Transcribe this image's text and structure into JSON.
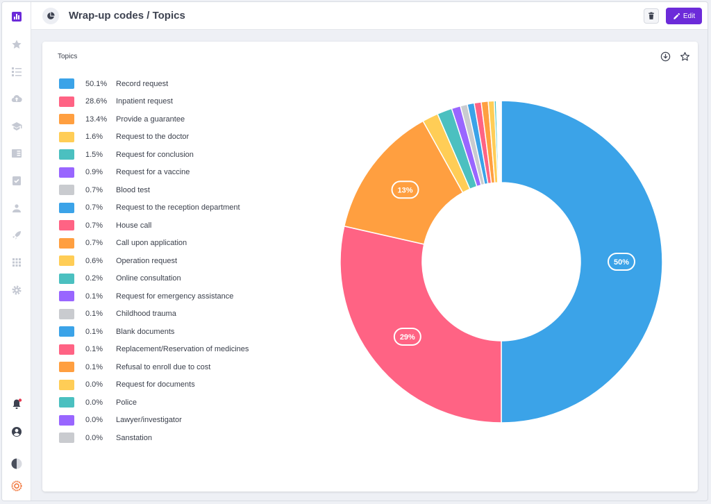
{
  "header": {
    "title": "Wrap-up codes / Topics",
    "edit_label": "Edit"
  },
  "card": {
    "title": "Topics"
  },
  "colors": {
    "accent": "#6c2bd9",
    "palette": [
      "#3ba3e8",
      "#ff6384",
      "#ff9f40",
      "#ffcd56",
      "#4bc0c0",
      "#9966ff",
      "#c9cbcf"
    ]
  },
  "sidebar_icons": [
    "bar-chart-icon",
    "star-icon",
    "list-icon",
    "cloud-upload-icon",
    "school-icon",
    "book-icon",
    "clipboard-check-icon",
    "users-icon",
    "rocket-icon",
    "apps-grid-icon",
    "gear-icon",
    "bell-icon",
    "account-icon",
    "theme-toggle-icon",
    "logo-icon"
  ],
  "chart_data": {
    "type": "pie",
    "variant": "doughnut",
    "title": "Topics",
    "legend": "left",
    "categories": [
      "Record request",
      "Inpatient request",
      "Provide a guarantee",
      "Request to the doctor",
      "Request for conclusion",
      "Request for a vaccine",
      "Blood test",
      "Request to the reception department",
      "House call",
      "Call upon application",
      "Operation request",
      "Online consultation",
      "Request for emergency assistance",
      "Childhood trauma",
      "Blank documents",
      "Replacement/Reservation of medicines",
      "Refusal to enroll due to cost",
      "Request for documents",
      "Police",
      "Lawyer/investigator",
      "Sanstation"
    ],
    "values": [
      50.1,
      28.6,
      13.4,
      1.6,
      1.5,
      0.9,
      0.7,
      0.7,
      0.7,
      0.7,
      0.6,
      0.2,
      0.1,
      0.1,
      0.1,
      0.1,
      0.1,
      0.0,
      0.0,
      0.0,
      0.0
    ],
    "legend_labels": [
      "50.1%",
      "28.6%",
      "13.4%",
      "1.6%",
      "1.5%",
      "0.9%",
      "0.7%",
      "0.7%",
      "0.7%",
      "0.7%",
      "0.6%",
      "0.2%",
      "0.1%",
      "0.1%",
      "0.1%",
      "0.1%",
      "0.1%",
      "0.0%",
      "0.0%",
      "0.0%",
      "0.0%"
    ],
    "data_labels": [
      {
        "index": 0,
        "text": "50%"
      },
      {
        "index": 1,
        "text": "29%"
      },
      {
        "index": 2,
        "text": "13%"
      }
    ]
  }
}
